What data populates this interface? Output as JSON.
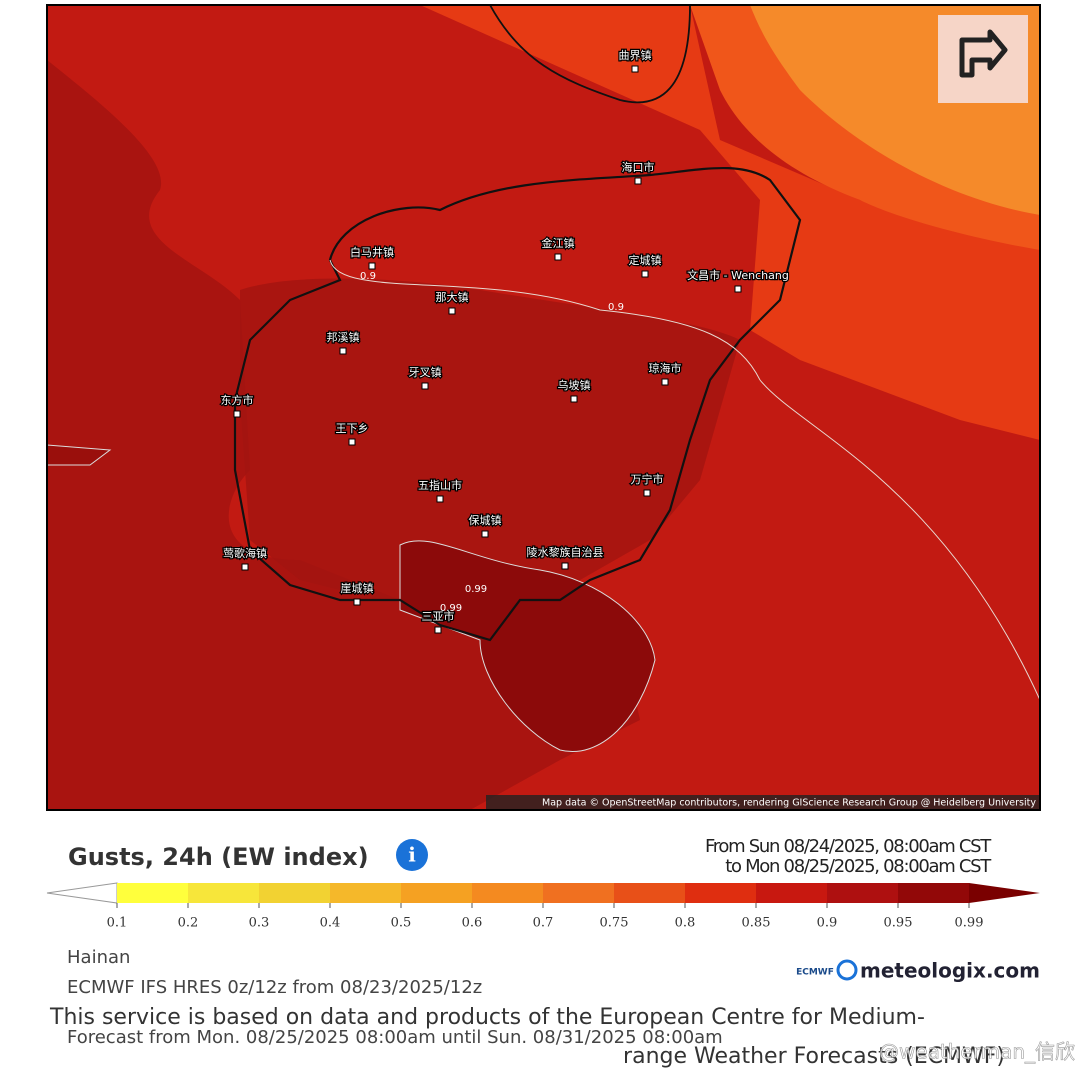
{
  "map": {
    "places": [
      "曲界镇",
      "海口市",
      "白马井镇",
      "金江镇",
      "定城镇",
      "文昌市 - Wenchang",
      "那大镇",
      "邦溪镇",
      "牙叉镇",
      "乌坡镇",
      "琼海市",
      "东方市",
      "王下乡",
      "五指山市",
      "万宁市",
      "保城镇",
      "陵水黎族自治县",
      "莺歌海镇",
      "崖城镇",
      "三亚市"
    ],
    "contour_labels": [
      "0.9",
      "0.9",
      "0.99",
      "0.99"
    ],
    "attribution": "Map data © OpenStreetMap contributors, rendering GIScience Research Group @ Heidelberg University"
  },
  "title": "Gusts, 24h (EW index)",
  "period": [
    "From Sun 08/24/2025, 08:00am CST",
    "to Mon 08/25/2025, 08:00am CST"
  ],
  "legend": {
    "ticks": [
      "0.1",
      "0.2",
      "0.3",
      "0.4",
      "0.5",
      "0.6",
      "0.7",
      "0.75",
      "0.8",
      "0.85",
      "0.9",
      "0.95",
      "0.99"
    ],
    "colors": [
      "#ffffff",
      "#ffff3c",
      "#f7e63a",
      "#f2d232",
      "#f5b82a",
      "#f5a122",
      "#f48a20",
      "#f07020",
      "#e85018",
      "#df2e10",
      "#c81810",
      "#ae1010",
      "#920808",
      "#7a0000"
    ]
  },
  "region": "Hainan",
  "model": "ECMWF IFS HRES 0z/12z from 08/23/2025/12z",
  "notice": [
    "This service is based on data and products of the European Centre for Medium-",
    "range Weather Forecasts (ECMWF)"
  ],
  "forecast": "Forecast from Mon. 08/25/2025 08:00am until Sun. 08/31/2025 08:00am",
  "brand": [
    "ECMWF",
    "meteologix.com"
  ],
  "watermark": "@weatherman_信欣"
}
